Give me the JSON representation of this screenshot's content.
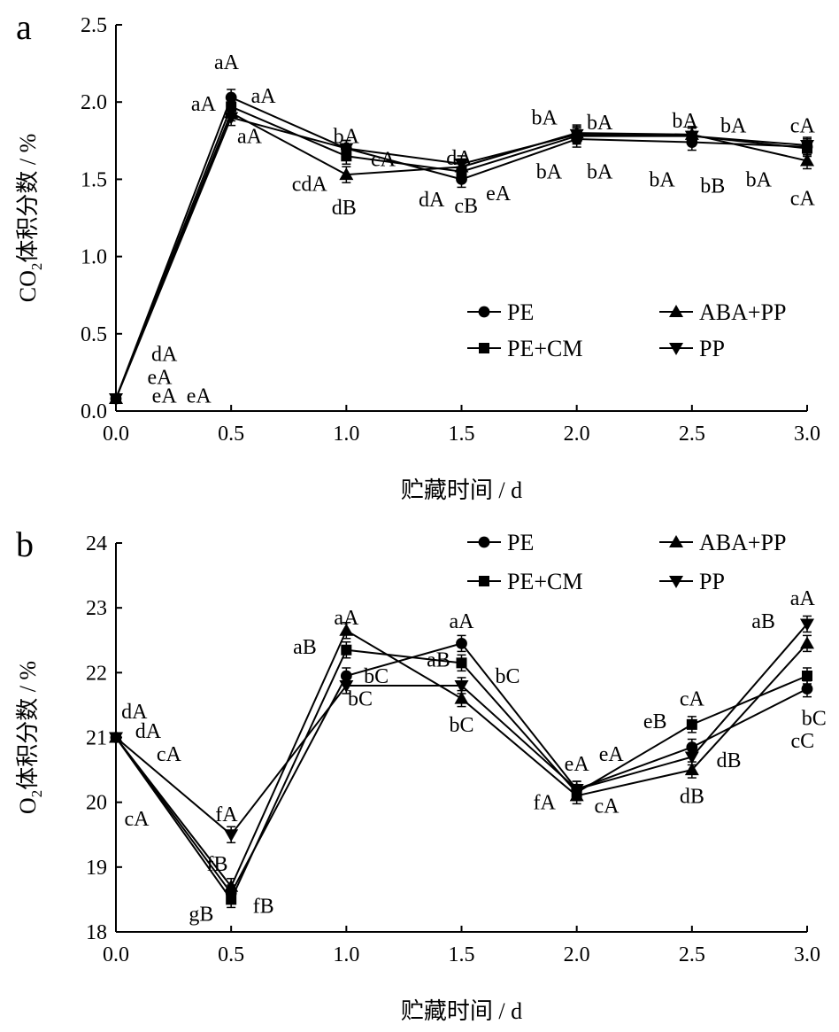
{
  "chart_data": [
    {
      "panel_label": "a",
      "type": "line",
      "ylabel_main": "CO",
      "ylabel_sub": "2",
      "ylabel_rest": "体积分数 / %",
      "xlabel": "贮藏时间 / d",
      "ylim": [
        0,
        2.5
      ],
      "xlim": [
        0,
        3
      ],
      "x_ticks": [
        "0.0",
        "0.5",
        "1.0",
        "1.5",
        "2.0",
        "2.5",
        "3.0"
      ],
      "y_ticks": [
        "0.0",
        "0.5",
        "1.0",
        "1.5",
        "2.0",
        "2.5"
      ],
      "x": [
        0,
        0.5,
        1,
        1.5,
        2,
        2.5,
        3
      ],
      "legend": "center-right",
      "series": [
        {
          "name": "PE",
          "marker": "circle",
          "values": [
            0.08,
            2.03,
            1.7,
            1.5,
            1.76,
            1.74,
            1.71
          ]
        },
        {
          "name": "PE+CM",
          "marker": "square",
          "values": [
            0.08,
            1.97,
            1.65,
            1.55,
            1.78,
            1.78,
            1.7
          ]
        },
        {
          "name": "ABA+PP",
          "marker": "triangle-up",
          "values": [
            0.08,
            1.93,
            1.53,
            1.58,
            1.8,
            1.79,
            1.62
          ]
        },
        {
          "name": "PP",
          "marker": "triangle-down",
          "values": [
            0.08,
            1.9,
            1.7,
            1.6,
            1.79,
            1.78,
            1.72
          ]
        }
      ],
      "annotations": [
        {
          "text": "dA",
          "x": 0.21,
          "y": 0.37
        },
        {
          "text": "eA",
          "x": 0.19,
          "y": 0.22
        },
        {
          "text": "eA",
          "x": 0.21,
          "y": 0.1
        },
        {
          "text": "eA",
          "x": 0.36,
          "y": 0.1
        },
        {
          "text": "aA",
          "x": 0.48,
          "y": 2.26
        },
        {
          "text": "aA",
          "x": 0.38,
          "y": 1.99
        },
        {
          "text": "aA",
          "x": 0.64,
          "y": 2.04
        },
        {
          "text": "aA",
          "x": 0.58,
          "y": 1.78
        },
        {
          "text": "bA",
          "x": 1.0,
          "y": 1.78
        },
        {
          "text": "cA",
          "x": 1.16,
          "y": 1.63
        },
        {
          "text": "cdA",
          "x": 0.84,
          "y": 1.47
        },
        {
          "text": "dB",
          "x": 0.99,
          "y": 1.32
        },
        {
          "text": "dA",
          "x": 1.49,
          "y": 1.64
        },
        {
          "text": "dA",
          "x": 1.37,
          "y": 1.37
        },
        {
          "text": "cB",
          "x": 1.52,
          "y": 1.33
        },
        {
          "text": "eA",
          "x": 1.66,
          "y": 1.41
        },
        {
          "text": "bA",
          "x": 1.86,
          "y": 1.9
        },
        {
          "text": "bA",
          "x": 2.1,
          "y": 1.87
        },
        {
          "text": "bA",
          "x": 1.88,
          "y": 1.55
        },
        {
          "text": "bA",
          "x": 2.1,
          "y": 1.55
        },
        {
          "text": "bA",
          "x": 2.47,
          "y": 1.88
        },
        {
          "text": "bA",
          "x": 2.68,
          "y": 1.85
        },
        {
          "text": "bA",
          "x": 2.37,
          "y": 1.5
        },
        {
          "text": "bB",
          "x": 2.59,
          "y": 1.46
        },
        {
          "text": "cA",
          "x": 2.98,
          "y": 1.85
        },
        {
          "text": "bA",
          "x": 2.79,
          "y": 1.5
        },
        {
          "text": "cA",
          "x": 2.98,
          "y": 1.38
        }
      ]
    },
    {
      "panel_label": "b",
      "type": "line",
      "ylabel_main": "O",
      "ylabel_sub": "2",
      "ylabel_rest": "体积分数 / %",
      "xlabel": "贮藏时间 / d",
      "ylim": [
        18,
        24
      ],
      "xlim": [
        0,
        3
      ],
      "x_ticks": [
        "0.0",
        "0.5",
        "1.0",
        "1.5",
        "2.0",
        "2.5",
        "3.0"
      ],
      "y_ticks": [
        "18",
        "19",
        "20",
        "21",
        "22",
        "23",
        "24"
      ],
      "x": [
        0,
        0.5,
        1,
        1.5,
        2,
        2.5,
        3
      ],
      "legend": "top-right",
      "series": [
        {
          "name": "PE",
          "marker": "circle",
          "values": [
            21.0,
            18.6,
            21.95,
            22.45,
            20.2,
            20.85,
            21.75
          ]
        },
        {
          "name": "PE+CM",
          "marker": "square",
          "values": [
            21.0,
            18.5,
            22.35,
            22.15,
            20.15,
            21.2,
            21.95
          ]
        },
        {
          "name": "ABA+PP",
          "marker": "triangle-up",
          "values": [
            21.0,
            18.7,
            22.65,
            21.6,
            20.1,
            20.5,
            22.45
          ]
        },
        {
          "name": "PP",
          "marker": "triangle-down",
          "values": [
            21.0,
            19.5,
            21.8,
            21.8,
            20.2,
            20.7,
            22.75
          ]
        }
      ],
      "annotations": [
        {
          "text": "dA",
          "x": 0.08,
          "y": 21.4
        },
        {
          "text": "dA",
          "x": 0.14,
          "y": 21.1
        },
        {
          "text": "cA",
          "x": 0.23,
          "y": 20.75
        },
        {
          "text": "cA",
          "x": 0.09,
          "y": 19.75
        },
        {
          "text": "fA",
          "x": 0.48,
          "y": 19.82
        },
        {
          "text": "fB",
          "x": 0.44,
          "y": 19.05
        },
        {
          "text": "gB",
          "x": 0.37,
          "y": 18.28
        },
        {
          "text": "fB",
          "x": 0.64,
          "y": 18.4
        },
        {
          "text": "aA",
          "x": 1.0,
          "y": 22.85
        },
        {
          "text": "aB",
          "x": 0.82,
          "y": 22.4
        },
        {
          "text": "bC",
          "x": 1.13,
          "y": 21.95
        },
        {
          "text": "bC",
          "x": 1.06,
          "y": 21.6
        },
        {
          "text": "aA",
          "x": 1.5,
          "y": 22.8
        },
        {
          "text": "aB",
          "x": 1.4,
          "y": 22.2
        },
        {
          "text": "bC",
          "x": 1.7,
          "y": 21.95
        },
        {
          "text": "bC",
          "x": 1.5,
          "y": 21.2
        },
        {
          "text": "eA",
          "x": 2.0,
          "y": 20.6
        },
        {
          "text": "eA",
          "x": 2.15,
          "y": 20.75
        },
        {
          "text": "fA",
          "x": 1.86,
          "y": 20.0
        },
        {
          "text": "cA",
          "x": 2.13,
          "y": 19.95
        },
        {
          "text": "cA",
          "x": 2.5,
          "y": 21.6
        },
        {
          "text": "eB",
          "x": 2.34,
          "y": 21.25
        },
        {
          "text": "dB",
          "x": 2.66,
          "y": 20.65
        },
        {
          "text": "dB",
          "x": 2.5,
          "y": 20.1
        },
        {
          "text": "aA",
          "x": 2.98,
          "y": 23.15
        },
        {
          "text": "aB",
          "x": 2.81,
          "y": 22.8
        },
        {
          "text": "bC",
          "x": 3.03,
          "y": 21.3
        },
        {
          "text": "cC",
          "x": 2.98,
          "y": 20.95
        }
      ]
    }
  ]
}
